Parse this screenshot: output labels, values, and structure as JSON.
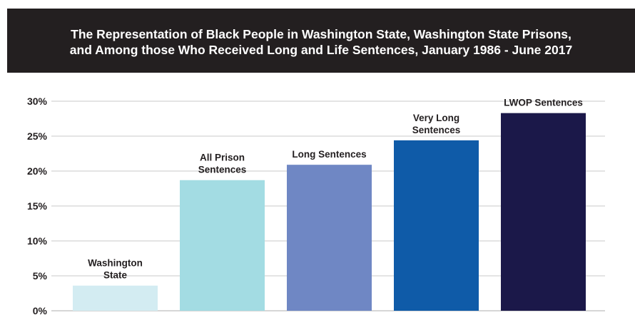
{
  "title": "The Representation of Black People in Washington State, Washington State Prisons, and Among those Who Received Long and Life Sentences, January 1986 - June 2017",
  "colors": {
    "title_background": "#231f20",
    "title_text": "#ffffff",
    "gridline": "#c8c8c8",
    "axis_text": "#231f20"
  },
  "chart_data": {
    "type": "bar",
    "title": "The Representation of Black People in Washington State, Washington State Prisons, and Among those Who Received Long and Life Sentences, January 1986 - June 2017",
    "xlabel": "",
    "ylabel": "",
    "categories": [
      "Washington State",
      "All Prison Sentences",
      "Long Sentences",
      "Very Long Sentences",
      "LWOP Sentences"
    ],
    "category_label_lines": [
      [
        "Washington",
        "State"
      ],
      [
        "All Prison",
        "Sentences"
      ],
      [
        "Long Sentences"
      ],
      [
        "Very Long",
        "Sentences"
      ],
      [
        "LWOP Sentences"
      ]
    ],
    "values": [
      3.6,
      18.7,
      20.9,
      24.4,
      28.3
    ],
    "value_unit": "%",
    "bar_colors": [
      "#d3ecf2",
      "#a3dce3",
      "#6f87c4",
      "#0f5ba8",
      "#1b1849"
    ],
    "ylim": [
      0,
      30
    ],
    "yticks": [
      0,
      5,
      10,
      15,
      20,
      25,
      30
    ],
    "ytick_labels": [
      "0%",
      "5%",
      "10%",
      "15%",
      "20%",
      "25%",
      "30%"
    ],
    "grid": true,
    "legend": "none"
  }
}
